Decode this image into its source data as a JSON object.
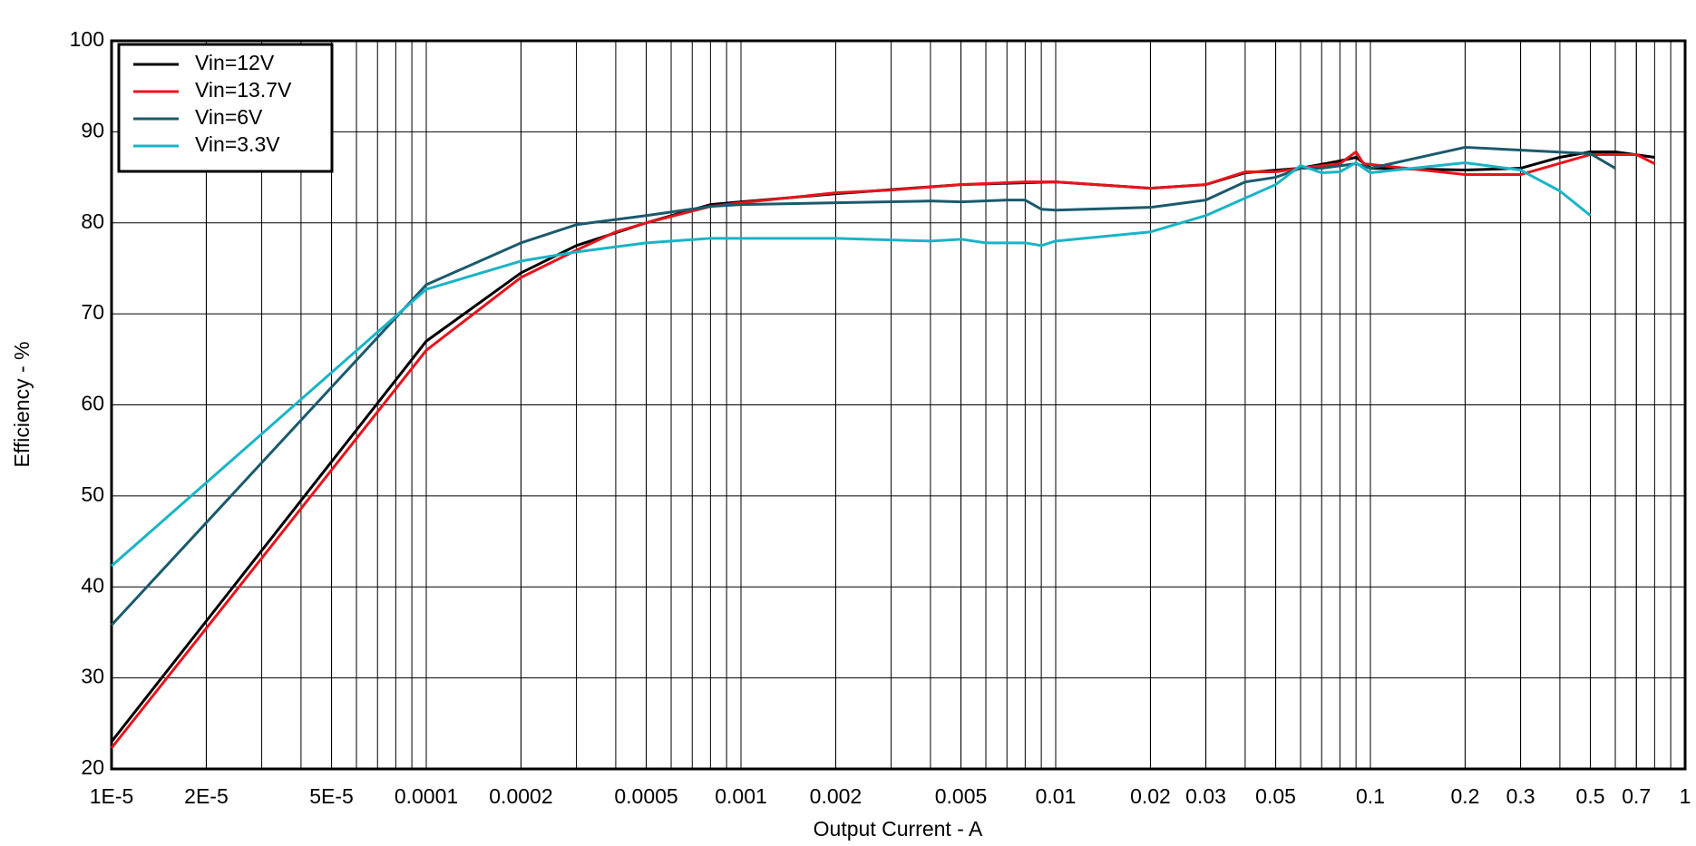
{
  "chart_data": {
    "type": "line",
    "x_label": "Output Current - A",
    "y_label": "Efficiency - %",
    "xlog": true,
    "grid": true,
    "minor_grid": true,
    "xlim": [
      1e-05,
      1
    ],
    "ylim": [
      20,
      100
    ],
    "xticks": [
      {
        "value": 1e-05,
        "label": "1E-5"
      },
      {
        "value": 2e-05,
        "label": "2E-5"
      },
      {
        "value": 5e-05,
        "label": "5E-5"
      },
      0.0001,
      0.0002,
      0.0005,
      0.001,
      0.002,
      0.005,
      0.01,
      0.02,
      0.03,
      0.05,
      0.1,
      0.2,
      0.3,
      0.5,
      0.7,
      1
    ],
    "yticks": [
      20,
      30,
      40,
      50,
      60,
      70,
      80,
      90,
      100
    ],
    "legend": "top-left",
    "series": [
      {
        "name": "Vin=12V",
        "color": "#000000",
        "x": [
          1e-05,
          0.0001,
          0.0002,
          0.0003,
          0.0005,
          0.0008,
          0.001,
          0.002,
          0.005,
          0.01,
          0.02,
          0.03,
          0.04,
          0.06,
          0.08,
          0.09,
          0.1,
          0.2,
          0.3,
          0.4,
          0.5,
          0.6,
          0.8
        ],
        "values": [
          23,
          67,
          74.5,
          77.5,
          80,
          82,
          82.3,
          83.2,
          84.2,
          84.5,
          83.8,
          84.2,
          85.5,
          86,
          86.8,
          87.2,
          86,
          85.8,
          86,
          87.2,
          87.8,
          87.8,
          87.2
        ]
      },
      {
        "name": "Vin=13.7V",
        "color": "#e8141c",
        "x": [
          1e-05,
          0.0001,
          0.0002,
          0.0003,
          0.0004,
          0.0005,
          0.0008,
          0.001,
          0.002,
          0.003,
          0.005,
          0.008,
          0.01,
          0.02,
          0.03,
          0.04,
          0.05,
          0.06,
          0.08,
          0.09,
          0.095,
          0.2,
          0.3,
          0.5,
          0.7,
          0.8
        ],
        "values": [
          22.3,
          66,
          74,
          77,
          79,
          80,
          81.8,
          82.2,
          83.3,
          83.6,
          84.2,
          84.5,
          84.5,
          83.8,
          84.2,
          85.6,
          85.6,
          86,
          86.5,
          87.8,
          86.5,
          85.3,
          85.3,
          87.5,
          87.5,
          86.5
        ]
      },
      {
        "name": "Vin=6V",
        "color": "#1b5a6c",
        "x": [
          1e-05,
          0.0001,
          0.0002,
          0.0003,
          0.0005,
          0.0008,
          0.001,
          0.002,
          0.004,
          0.005,
          0.007,
          0.008,
          0.009,
          0.01,
          0.02,
          0.03,
          0.04,
          0.05,
          0.06,
          0.07,
          0.09,
          0.1,
          0.2,
          0.5,
          0.6
        ],
        "values": [
          35.8,
          73.2,
          77.8,
          79.8,
          80.8,
          81.8,
          82,
          82.2,
          82.4,
          82.3,
          82.5,
          82.5,
          81.5,
          81.4,
          81.7,
          82.5,
          84.5,
          85,
          86,
          86,
          86.5,
          86,
          88.3,
          87.6,
          86
        ]
      },
      {
        "name": "Vin=3.3V",
        "color": "#1ab4c6",
        "x": [
          1e-05,
          0.0001,
          0.0002,
          0.0003,
          0.0005,
          0.0008,
          0.002,
          0.004,
          0.005,
          0.006,
          0.008,
          0.009,
          0.01,
          0.02,
          0.03,
          0.05,
          0.06,
          0.07,
          0.08,
          0.09,
          0.1,
          0.2,
          0.3,
          0.4,
          0.5
        ],
        "values": [
          42.3,
          72.7,
          75.8,
          76.8,
          77.8,
          78.3,
          78.3,
          78,
          78.2,
          77.8,
          77.8,
          77.5,
          78,
          79,
          80.8,
          84.2,
          86.3,
          85.5,
          85.6,
          86.6,
          85.5,
          86.6,
          85.8,
          83.5,
          80.8
        ]
      }
    ]
  }
}
